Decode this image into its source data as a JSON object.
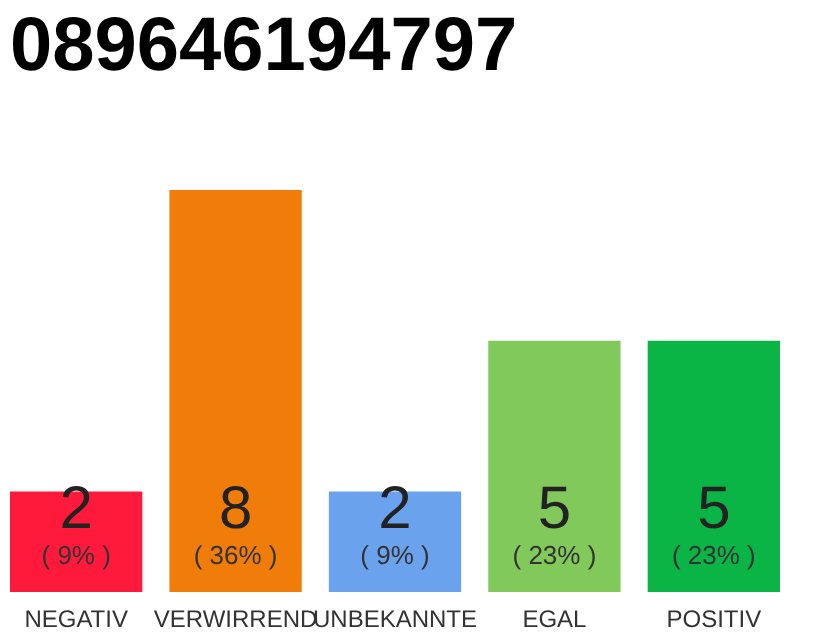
{
  "chart_data": {
    "type": "bar",
    "title": "089646194797",
    "categories": [
      "NEGATIV",
      "VERWIRREND",
      "UNBEKANNTE",
      "EGAL",
      "POSITIV"
    ],
    "values": [
      2,
      8,
      2,
      5,
      5
    ],
    "colors": [
      "#ff1a3c",
      "#f07c0a",
      "#6ba2ee",
      "#80c95a",
      "#0ab445"
    ],
    "data_labels": true,
    "annotations": [
      "( 9% )",
      "( 36% )",
      "( 9% )",
      "( 23% )",
      "( 23% )"
    ]
  }
}
